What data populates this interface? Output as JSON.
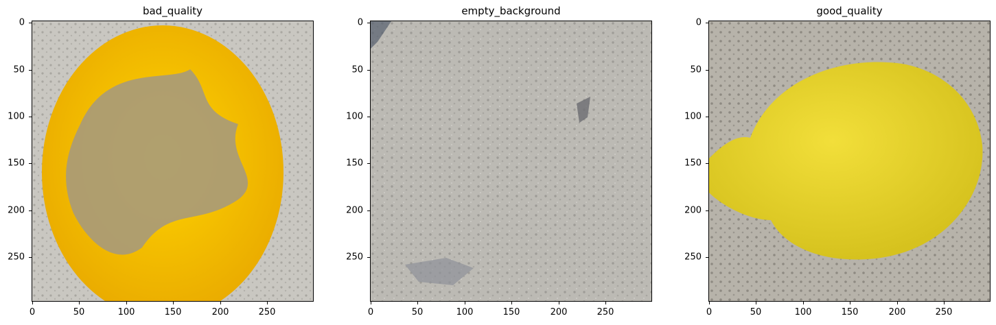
{
  "panels": [
    {
      "title": "bad_quality",
      "image": "lemon-with-brown-mold-patch",
      "yticks": [
        "0",
        "50",
        "100",
        "150",
        "200",
        "250"
      ],
      "xticks": [
        "0",
        "50",
        "100",
        "150",
        "200",
        "250"
      ]
    },
    {
      "title": "empty_background",
      "image": "grey-textured-concrete-surface",
      "yticks": [
        "0",
        "50",
        "100",
        "150",
        "200",
        "250"
      ],
      "xticks": [
        "0",
        "50",
        "100",
        "150",
        "200",
        "250"
      ]
    },
    {
      "title": "good_quality",
      "image": "healthy-yellow-lemon",
      "yticks": [
        "0",
        "50",
        "100",
        "150",
        "200",
        "250"
      ],
      "xticks": [
        "0",
        "50",
        "100",
        "150",
        "200",
        "250"
      ]
    }
  ],
  "colors": {
    "lemon_yellow": "#f5c600",
    "mold_brown": "#a79a7a",
    "concrete_grey": "#bcbab4",
    "good_lemon": "#e8d530"
  }
}
